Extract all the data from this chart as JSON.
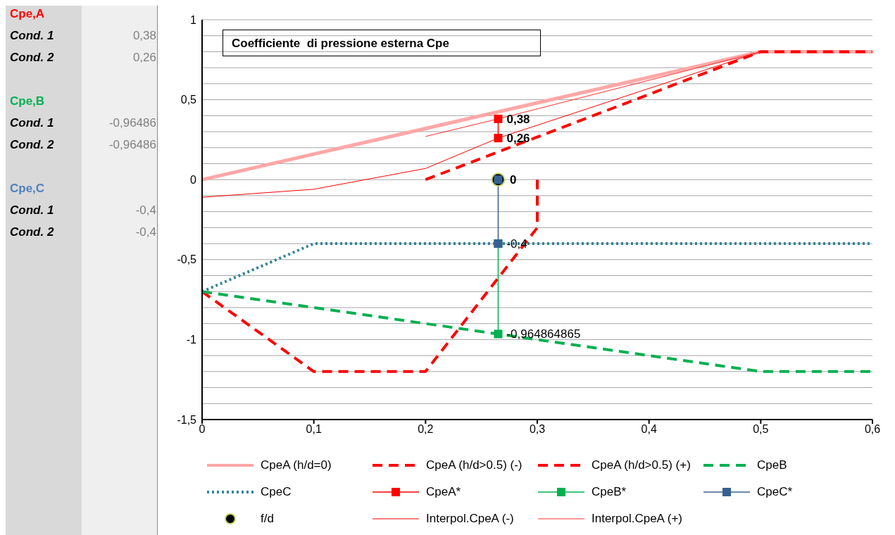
{
  "chart_data": {
    "type": "line",
    "title": "Coefficiente  di pressione esterna Cpe",
    "xlim": [
      0,
      0.6
    ],
    "xticks": [
      {
        "value": 0,
        "label": "0"
      },
      {
        "value": 0.1,
        "label": "0,1"
      },
      {
        "value": 0.2,
        "label": "0,2"
      },
      {
        "value": 0.3,
        "label": "0,3"
      },
      {
        "value": 0.4,
        "label": "0,4"
      },
      {
        "value": 0.5,
        "label": "0,5"
      },
      {
        "value": 0.6,
        "label": "0,6"
      }
    ],
    "ylim": [
      -1.5,
      1
    ],
    "yticks": [
      {
        "value": -1.5,
        "label": "-1,5"
      },
      {
        "value": -1.4,
        "label": null
      },
      {
        "value": -1.3,
        "label": null
      },
      {
        "value": -1.2,
        "label": null
      },
      {
        "value": -1.1,
        "label": null
      },
      {
        "value": -1,
        "label": "-1"
      },
      {
        "value": -0.9,
        "label": null
      },
      {
        "value": -0.8,
        "label": null
      },
      {
        "value": -0.7,
        "label": null
      },
      {
        "value": -0.6,
        "label": null
      },
      {
        "value": -0.5,
        "label": "-0,5"
      },
      {
        "value": -0.4,
        "label": null
      },
      {
        "value": -0.3,
        "label": null
      },
      {
        "value": -0.2,
        "label": null
      },
      {
        "value": -0.1,
        "label": null
      },
      {
        "value": 0,
        "label": "0"
      },
      {
        "value": 0.1,
        "label": null
      },
      {
        "value": 0.2,
        "label": null
      },
      {
        "value": 0.3,
        "label": null
      },
      {
        "value": 0.4,
        "label": null
      },
      {
        "value": 0.5,
        "label": "0,5"
      },
      {
        "value": 0.6,
        "label": null
      },
      {
        "value": 0.7,
        "label": null
      },
      {
        "value": 0.8,
        "label": null
      },
      {
        "value": 0.9,
        "label": null
      },
      {
        "value": 1,
        "label": "1"
      }
    ],
    "grid": "y",
    "legend": "bottom",
    "series": [
      {
        "name": "CpeA (h/d=0)",
        "color": "#ffa7a7",
        "line_style": "solid",
        "marker": "none",
        "x": [
          0,
          0.5,
          0.6
        ],
        "values": [
          0,
          0.8,
          0.8
        ]
      },
      {
        "name": "CpeA (h/d>0.5) (-)",
        "color": "#ff0000",
        "line_style": "dashed",
        "marker": "none",
        "x": [
          0,
          0.1,
          0.2,
          0.3,
          0.3
        ],
        "values": [
          -0.7,
          -1.2,
          -1.2,
          -0.3,
          0
        ]
      },
      {
        "name": "CpeA (h/d>0.5) (+)",
        "color": "#ff0000",
        "line_style": "dashed",
        "marker": "none",
        "x": [
          0.2,
          0.5,
          0.6
        ],
        "values": [
          0,
          0.8,
          0.8
        ]
      },
      {
        "name": "CpeB",
        "color": "#00b050",
        "line_style": "dashed",
        "marker": "none",
        "x": [
          0,
          0.5,
          0.6
        ],
        "values": [
          -0.7,
          -1.2,
          -1.2
        ]
      },
      {
        "name": "CpeC",
        "color": "#31849b",
        "line_style": "dotted",
        "marker": "none",
        "x": [
          0,
          0.1,
          0.6
        ],
        "values": [
          -0.7,
          -0.4,
          -0.4
        ]
      },
      {
        "name": "CpeA*",
        "color": "#ff0000",
        "line_style": "solid",
        "marker": "square",
        "x": [
          0.265,
          0.265
        ],
        "values": [
          0.38,
          0.26
        ],
        "value_labels": [
          "0,38",
          "0,26"
        ]
      },
      {
        "name": "CpeB*",
        "color": "#00b050",
        "line_style": "solid",
        "marker": "square",
        "x": [
          0.265,
          0.265
        ],
        "values": [
          -0.4,
          -0.964864865
        ],
        "value_labels": [
          null,
          "-0,964864865"
        ]
      },
      {
        "name": "CpeC*",
        "color": "#376092",
        "line_style": "solid",
        "marker": "square",
        "x": [
          0.265,
          0.265
        ],
        "values": [
          0,
          -0.4
        ],
        "value_labels": [
          null,
          "-0,4"
        ]
      },
      {
        "name": "f/d",
        "type": "scatter",
        "color": "#000000",
        "marker": "circle",
        "x": [
          0.265
        ],
        "values": [
          0
        ],
        "value_labels": [
          "0"
        ]
      },
      {
        "name": "Interpol.CpeA (-)",
        "color": "#ff0000",
        "line_style": "solid",
        "marker": "none",
        "x": [
          0,
          0.1,
          0.2,
          0.265,
          0.5
        ],
        "values": [
          -0.11,
          -0.06,
          0.07,
          0.26,
          0.8
        ]
      },
      {
        "name": "Interpol.CpeA (+)",
        "color": "#ff3030",
        "line_style": "solid",
        "marker": "none",
        "x": [
          0.2,
          0.265,
          0.5
        ],
        "values": [
          0.27,
          0.38,
          0.8
        ]
      }
    ],
    "annotations": [
      "Cpe,A",
      "Cond. 1",
      "0,38",
      "Cond. 2",
      "0,26",
      "Cpe,B",
      "Cond. 1",
      "-0,96486",
      "Cond. 2",
      "-0,96486",
      "Cpe,C",
      "Cond. 1",
      "-0,4",
      "Cond. 2",
      "-0,4"
    ]
  }
}
